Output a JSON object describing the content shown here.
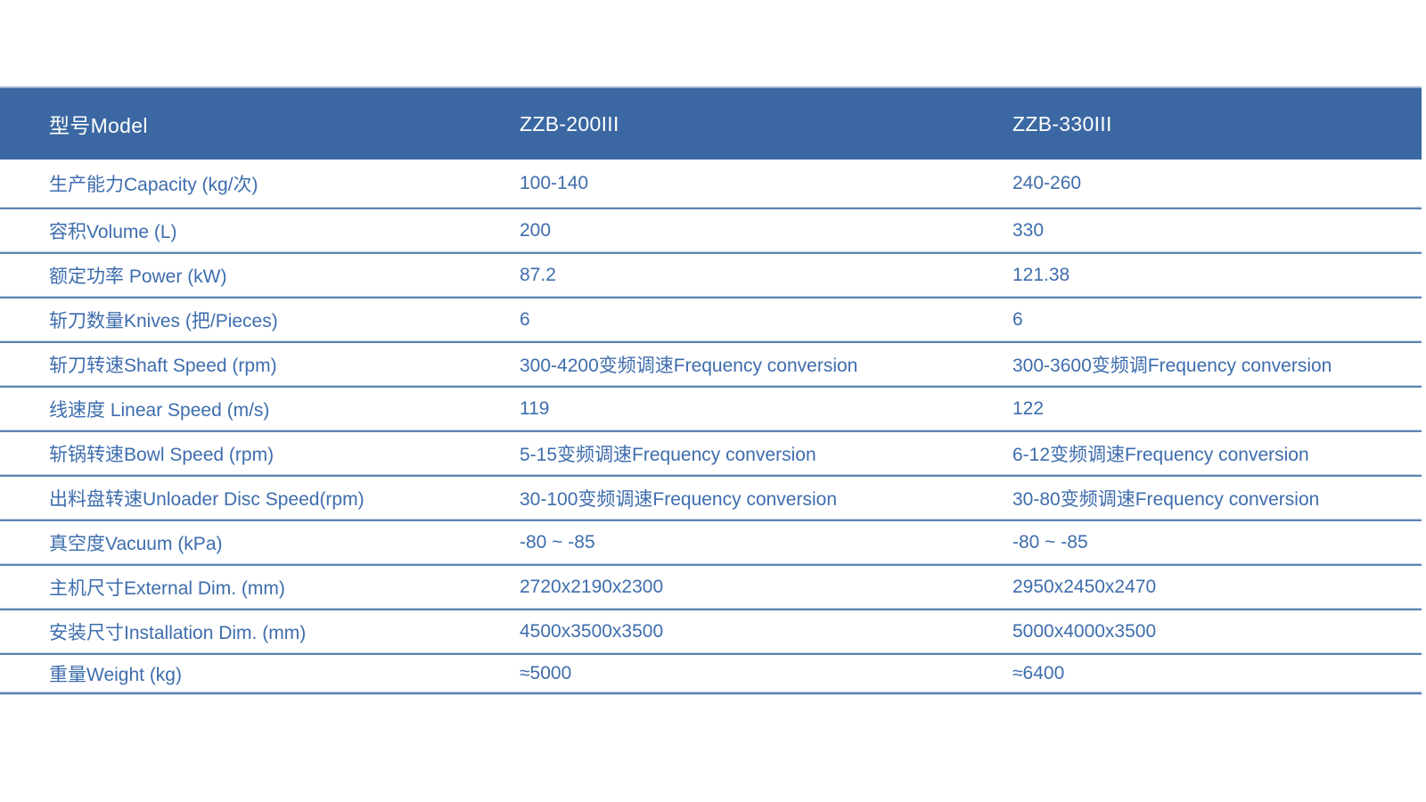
{
  "colors": {
    "header_bg": "#3b68a2",
    "header_text": "#ffffff",
    "body_text": "#3e6dad",
    "separator_dark": "#5e83b3",
    "separator_light": "#c6d4e8",
    "header_top_strip": "#9fb4d3",
    "page_bg": "#ffffff"
  },
  "table": {
    "header": {
      "model": "型号Model",
      "zzb200": "ZZB-200III",
      "zzb330": "ZZB-330III"
    },
    "rows": [
      {
        "label": "生产能力Capacity (kg/次)",
        "zzb200": "100-140",
        "zzb330": "240-260"
      },
      {
        "label": "容积Volume (L)",
        "zzb200": "200",
        "zzb330": "330"
      },
      {
        "label": "额定功率 Power (kW)",
        "zzb200": "87.2",
        "zzb330": "121.38"
      },
      {
        "label": "斩刀数量Knives (把/Pieces)",
        "zzb200": "6",
        "zzb330": "6"
      },
      {
        "label": "斩刀转速Shaft Speed (rpm)",
        "zzb200": "300-4200变频调速Frequency conversion",
        "zzb330": "300-3600变频调Frequency conversion"
      },
      {
        "label": "线速度 Linear Speed (m/s)",
        "zzb200": "119",
        "zzb330": "122"
      },
      {
        "label": "斩锅转速Bowl Speed (rpm)",
        "zzb200": "5-15变频调速Frequency conversion",
        "zzb330": "6-12变频调速Frequency conversion"
      },
      {
        "label": "出料盘转速Unloader Disc Speed(rpm)",
        "zzb200": "30-100变频调速Frequency conversion",
        "zzb330": "30-80变频调速Frequency conversion"
      },
      {
        "label": "真空度Vacuum (kPa)",
        "zzb200": "-80 ~ -85",
        "zzb330": "-80 ~ -85"
      },
      {
        "label": "主机尺寸External Dim. (mm)",
        "zzb200": "2720x2190x2300",
        "zzb330": "2950x2450x2470"
      },
      {
        "label": "安装尺寸Installation Dim. (mm)",
        "zzb200": "4500x3500x3500",
        "zzb330": "5000x4000x3500"
      },
      {
        "label": "重量Weight (kg)",
        "zzb200": "≈5000",
        "zzb330": "≈6400"
      }
    ]
  }
}
